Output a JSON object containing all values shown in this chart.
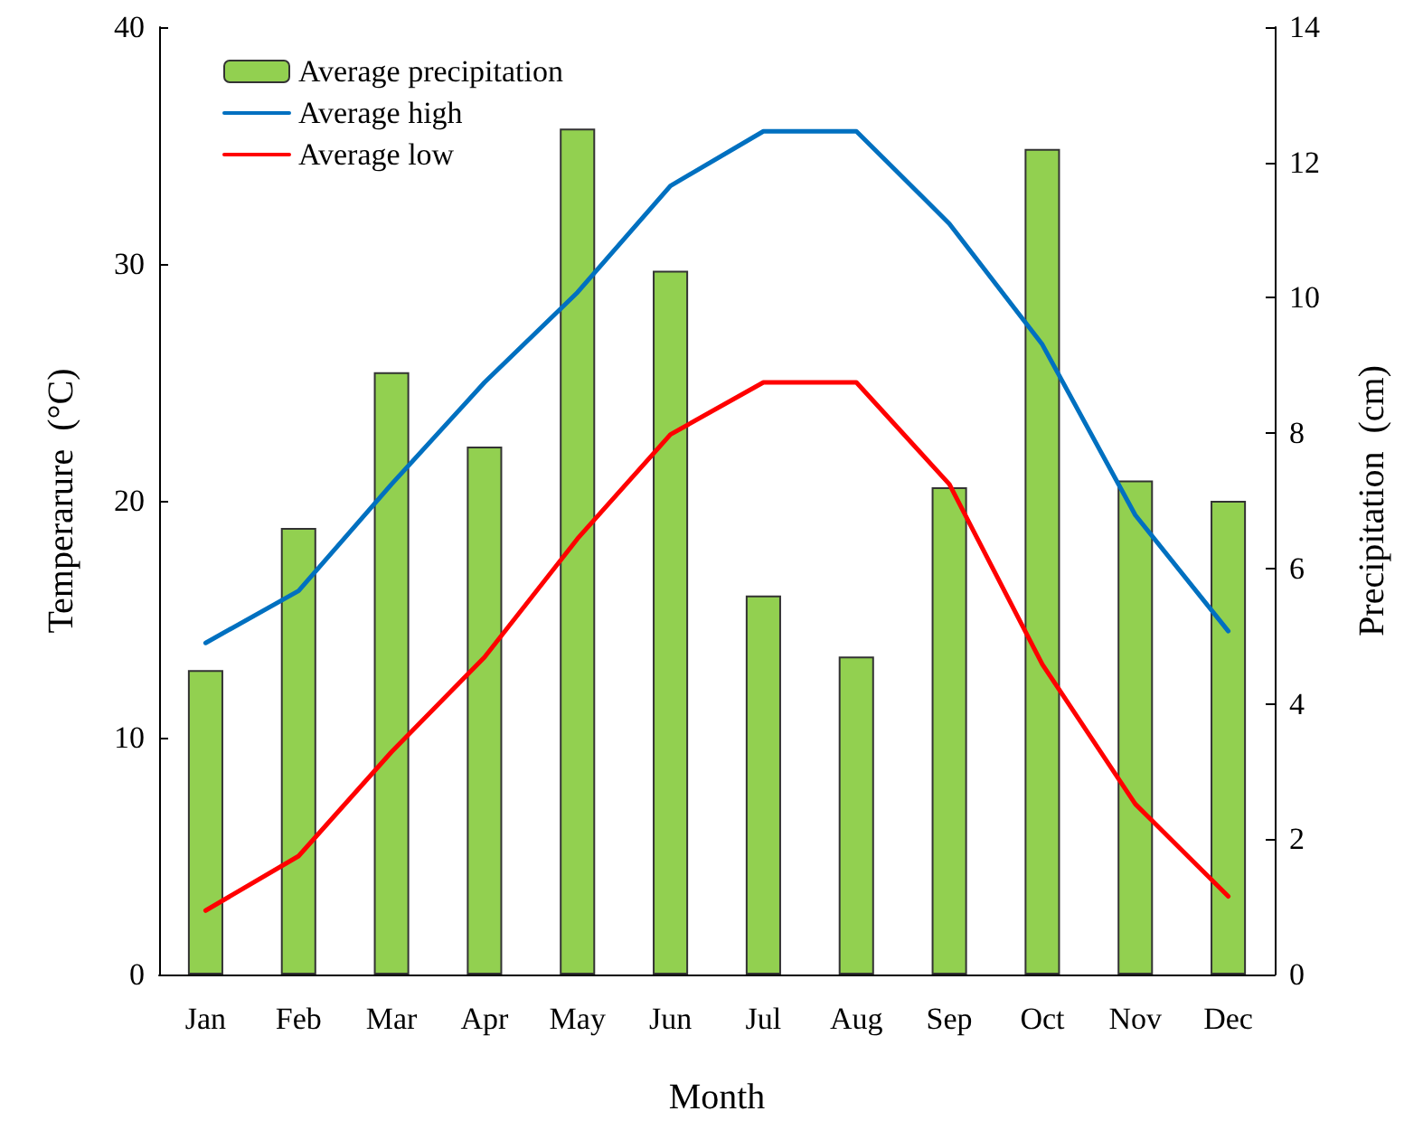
{
  "chart_data": {
    "type": "bar",
    "xlabel": "Month",
    "ylabel": "Temperarure  (°C)",
    "y2label": "Precipitation  (cm)",
    "categories": [
      "Jan",
      "Feb",
      "Mar",
      "Apr",
      "May",
      "Jun",
      "Jul",
      "Aug",
      "Sep",
      "Oct",
      "Nov",
      "Dec"
    ],
    "series": [
      {
        "name": "Average precipitation",
        "axis": "y2",
        "color": "#92d050",
        "values": [
          4.5,
          6.6,
          8.9,
          7.8,
          12.5,
          10.4,
          5.6,
          4.7,
          7.2,
          12.2,
          7.3,
          7.0
        ]
      },
      {
        "name": "Average high",
        "type": "line",
        "color": "#0070c0",
        "values": [
          14.0,
          16.2,
          20.7,
          25.0,
          28.8,
          33.3,
          35.6,
          35.6,
          31.7,
          26.6,
          19.4,
          14.5
        ]
      },
      {
        "name": "Average low",
        "type": "line",
        "color": "#ff0000",
        "values": [
          2.7,
          5.0,
          9.4,
          13.4,
          18.4,
          22.8,
          25.0,
          25.0,
          20.7,
          13.1,
          7.2,
          3.3
        ]
      }
    ],
    "ylim": [
      0,
      40
    ],
    "yticks": [
      0,
      10,
      20,
      30,
      40
    ],
    "y2lim": [
      0,
      14
    ],
    "y2ticks": [
      0,
      2,
      4,
      6,
      8,
      10,
      12,
      14
    ],
    "legend": "top left",
    "grid": false,
    "marker": "none",
    "line_style": "solid"
  }
}
